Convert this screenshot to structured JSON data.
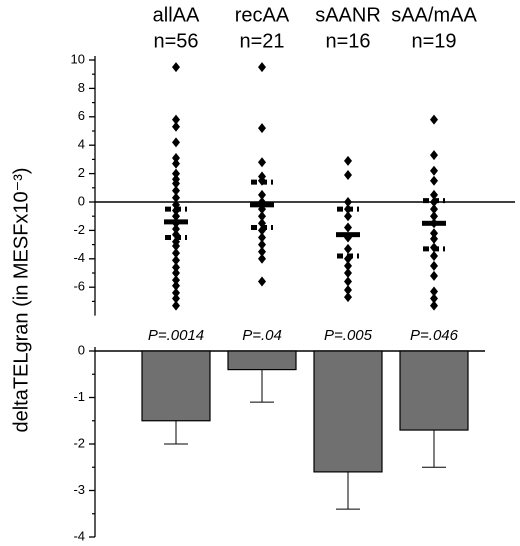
{
  "chart_data": [
    {
      "type": "strip",
      "y_label": "deltaTELgran (in MESFx10⁻³)",
      "categories": [
        "allAA",
        "recAA",
        "sAANR",
        "sAA/mAA"
      ],
      "n_labels": [
        "n=56",
        "n=21",
        "n=16",
        "n=19"
      ],
      "ylim": [
        -8,
        10
      ],
      "yticks": [
        10,
        8,
        6,
        4,
        2,
        0,
        -2,
        -4,
        -6
      ],
      "minor_yticks": [
        9,
        7,
        5,
        3,
        1,
        -1,
        -3,
        -5,
        -7
      ],
      "color": "#000000",
      "series": [
        {
          "name": "allAA",
          "values": [
            9.5,
            5.8,
            5.3,
            4.2,
            3.1,
            2.7,
            2.0,
            1.6,
            1.3,
            0.8,
            0.3,
            -0.2,
            -0.6,
            -1.0,
            -1.5,
            -1.9,
            -2.3,
            -2.8,
            -3.1,
            -3.6,
            -4.1,
            -4.6,
            -5.0,
            -5.5,
            -5.9,
            -6.4,
            -6.8,
            -7.3
          ]
        },
        {
          "name": "recAA",
          "values": [
            9.5,
            5.2,
            2.8,
            1.8,
            1.5,
            0.5,
            0.0,
            -0.5,
            -1.0,
            -1.5,
            -2.0,
            -2.5,
            -3.0,
            -3.5,
            -4.0,
            -5.6
          ]
        },
        {
          "name": "sAANR",
          "values": [
            2.9,
            1.9,
            0.0,
            -0.5,
            -1.0,
            -1.8,
            -2.5,
            -3.3,
            -4.0,
            -4.5,
            -5.0,
            -5.6,
            -6.2,
            -6.7
          ]
        },
        {
          "name": "sAA/mAA",
          "values": [
            5.8,
            3.3,
            2.2,
            1.5,
            0.5,
            0.0,
            -0.5,
            -1.0,
            -1.5,
            -2.2,
            -2.6,
            -3.2,
            -3.8,
            -4.5,
            -5.2,
            -6.3,
            -6.8,
            -7.3
          ]
        }
      ],
      "means": [
        -1.4,
        -0.2,
        -2.3,
        -1.5
      ],
      "upper": [
        -0.5,
        1.4,
        -0.5,
        0.1
      ],
      "lower": [
        -2.5,
        -1.8,
        -3.8,
        -3.3
      ]
    },
    {
      "type": "bar",
      "values": [
        -1.5,
        -0.4,
        -2.6,
        -1.7
      ],
      "errors": [
        0.5,
        0.7,
        0.8,
        0.8
      ],
      "annotations": [
        "P=.0014",
        "P=.04",
        "P=.005",
        "P=.046"
      ],
      "color": "#707070",
      "ylim": [
        -4,
        0
      ],
      "yticks": [
        0,
        -1,
        -2,
        -3,
        -4
      ],
      "minor_yticks": [
        -0.5,
        -1.5,
        -2.5,
        -3.5
      ]
    }
  ]
}
